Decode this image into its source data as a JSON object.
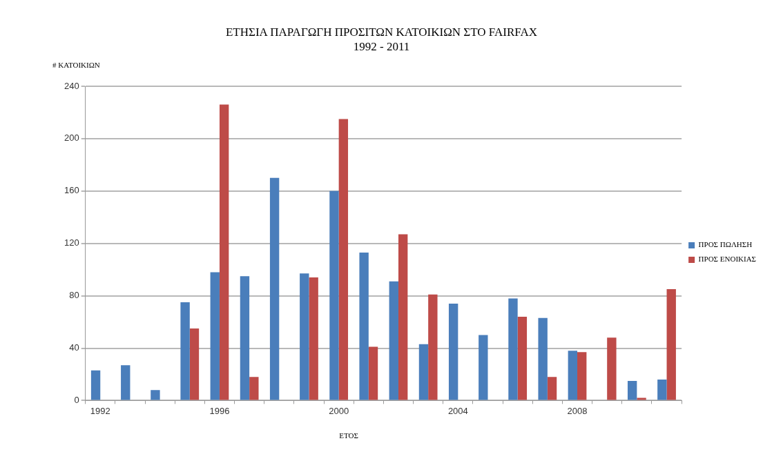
{
  "chart_data": {
    "type": "bar",
    "title": "ΕΤΗΣΙΑ ΠΑΡΑΓΩΓΗ ΠΡΟΣΙΤΩΝ ΚΑΤΟΙΚΙΩΝ ΣΤΟ FAIRFAX",
    "subtitle": "1992 - 2011",
    "ylabel": "# ΚΑΤΟΙΚΙΩΝ",
    "xlabel": "ΕΤΟΣ",
    "categories": [
      "1992",
      null,
      null,
      null,
      "1996",
      null,
      null,
      null,
      "2000",
      null,
      null,
      null,
      "2004",
      null,
      null,
      null,
      "2008",
      null,
      null,
      null
    ],
    "series": [
      {
        "name": "ΠΡΟΣ ΠΩΛΗΣΗ",
        "color": "#4a7ebb",
        "values": [
          23,
          27,
          8,
          75,
          98,
          95,
          170,
          97,
          160,
          113,
          91,
          43,
          74,
          50,
          78,
          63,
          38,
          0,
          15,
          16
        ]
      },
      {
        "name": "ΠΡΟΣ ΕΝΟΙΚΙΑΣ",
        "color": "#be4b48",
        "values": [
          0,
          0,
          0,
          55,
          226,
          18,
          0,
          94,
          215,
          41,
          127,
          81,
          0,
          0,
          64,
          18,
          37,
          48,
          2,
          85
        ]
      }
    ],
    "ylim": [
      0,
      240
    ],
    "yticks": [
      0,
      40,
      80,
      120,
      160,
      200,
      240
    ],
    "grid": "y",
    "legend": "right"
  }
}
